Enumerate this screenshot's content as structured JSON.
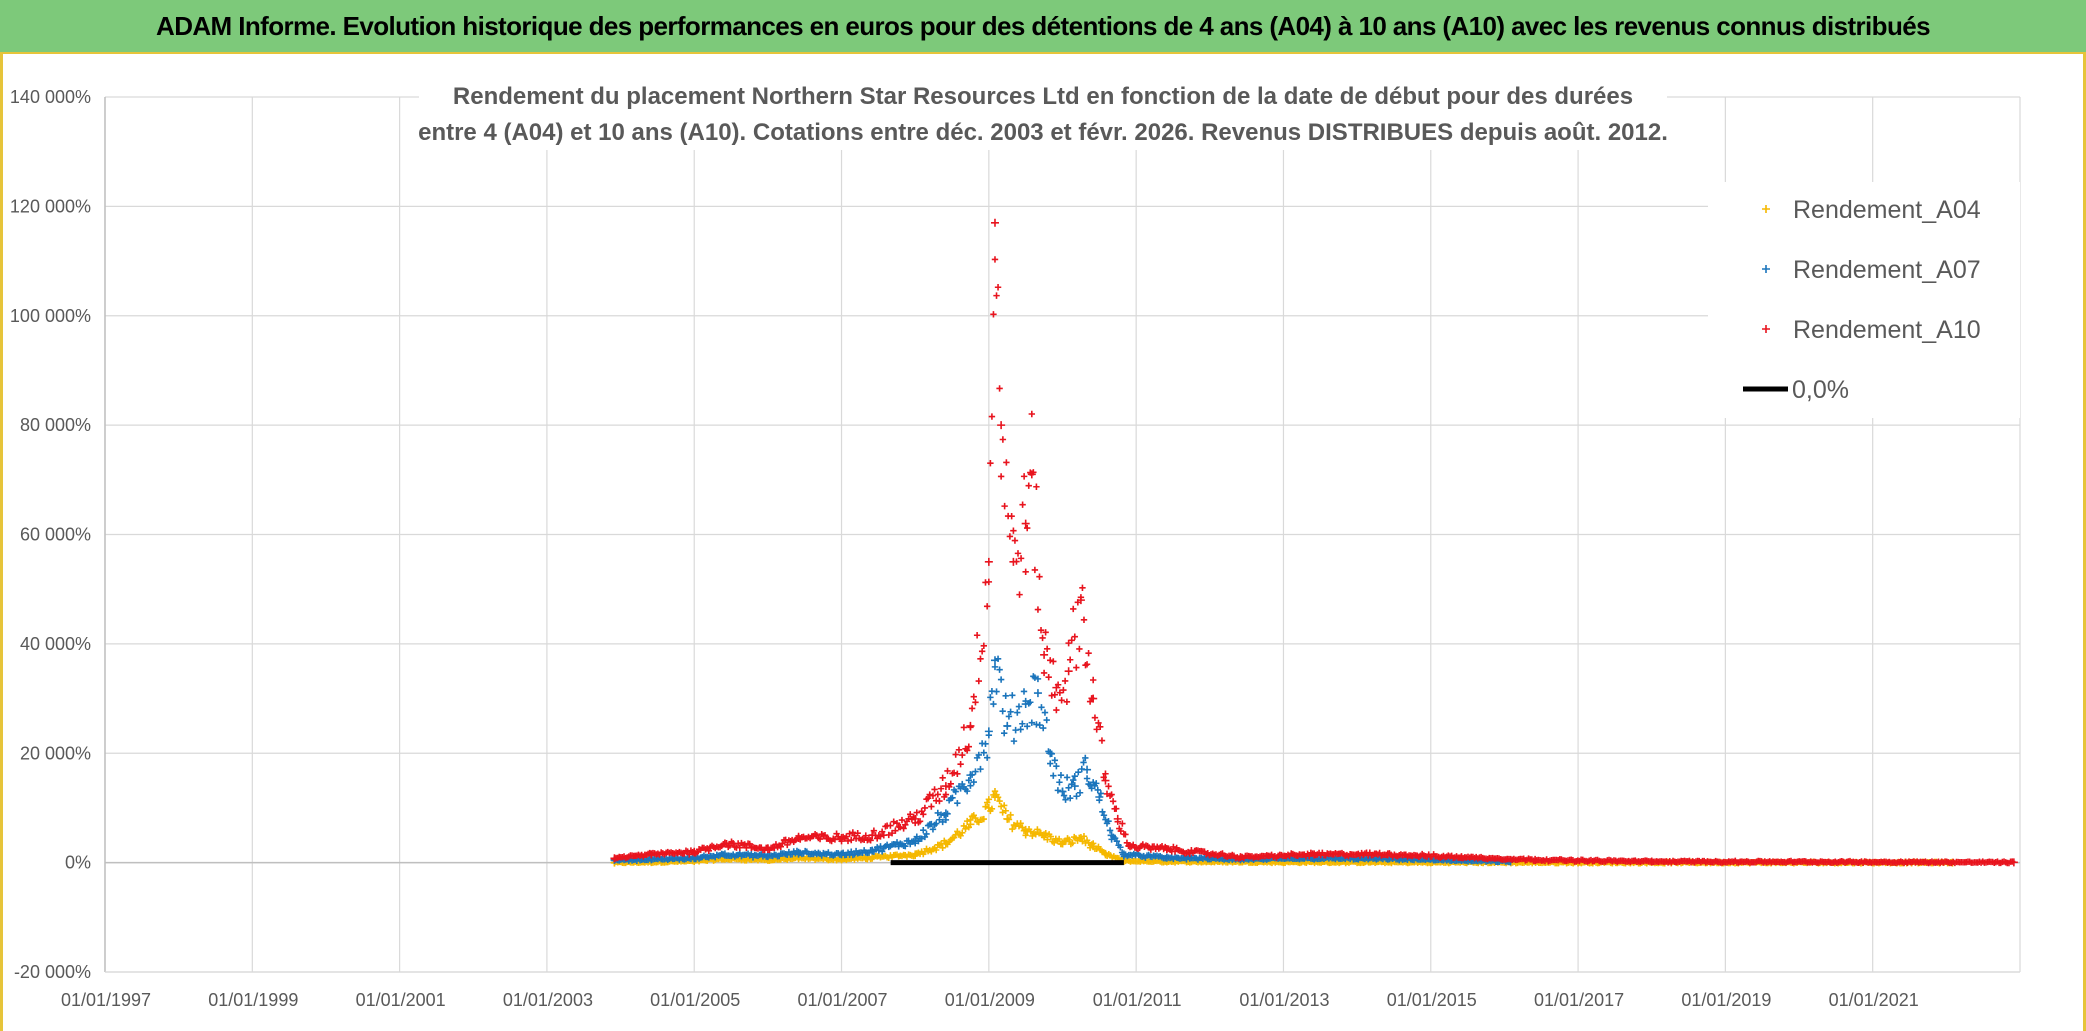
{
  "banner": {
    "title": "ADAM Informe. Evolution historique des performances en euros pour des détentions de 4 ans (A04) à 10 ans (A10) avec les revenus connus distribués"
  },
  "chart_data": {
    "type": "scatter",
    "title_lines": [
      "Rendement du placement Northern Star Resources Ltd en fonction de la date de début pour des durées",
      "entre 4 (A04) et 10 ans (A10). Cotations entre déc. 2003 et févr. 2026. Revenus DISTRIBUES depuis août. 2012."
    ],
    "xlabel": "",
    "ylabel": "",
    "x_range": [
      "1997-01-01",
      "2023-01-01"
    ],
    "ylim": [
      -20000,
      140000
    ],
    "y_ticks": [
      -20000,
      0,
      20000,
      40000,
      60000,
      80000,
      100000,
      120000,
      140000
    ],
    "y_tick_labels": [
      "-20 000%",
      "0%",
      "20 000%",
      "40 000%",
      "60 000%",
      "80 000%",
      "100 000%",
      "120 000%",
      "140 000%"
    ],
    "x_tick_labels": [
      "01/01/1997",
      "01/01/1999",
      "01/01/2001",
      "01/01/2003",
      "01/01/2005",
      "01/01/2007",
      "01/01/2009",
      "01/01/2011",
      "01/01/2013",
      "01/01/2015",
      "01/01/2017",
      "01/01/2019",
      "01/01/2021"
    ],
    "grid": true,
    "legend_position": "top-right",
    "series": [
      {
        "name": "Rendement_A04",
        "color": "#f5b800",
        "marker": "plus",
        "x_range": [
          "2003-12-01",
          "2022-02-01"
        ],
        "points": [
          [
            "2003-12-01",
            0
          ],
          [
            "2004-06-01",
            100
          ],
          [
            "2005-01-01",
            300
          ],
          [
            "2005-06-01",
            700
          ],
          [
            "2006-01-01",
            500
          ],
          [
            "2006-06-01",
            800
          ],
          [
            "2007-01-01",
            600
          ],
          [
            "2007-06-01",
            900
          ],
          [
            "2008-01-01",
            1500
          ],
          [
            "2008-06-01",
            3500
          ],
          [
            "2008-10-01",
            7000
          ],
          [
            "2009-01-01",
            10000
          ],
          [
            "2009-02-01",
            12000
          ],
          [
            "2009-04-01",
            8000
          ],
          [
            "2009-07-01",
            6000
          ],
          [
            "2009-10-01",
            5000
          ],
          [
            "2010-01-01",
            3500
          ],
          [
            "2010-04-01",
            4500
          ],
          [
            "2010-06-01",
            3000
          ],
          [
            "2010-08-01",
            1500
          ],
          [
            "2010-11-01",
            300
          ],
          [
            "2011-06-01",
            200
          ],
          [
            "2013-01-01",
            100
          ],
          [
            "2015-01-01",
            50
          ],
          [
            "2017-01-01",
            20
          ],
          [
            "2022-02-01",
            10
          ]
        ]
      },
      {
        "name": "Rendement_A07",
        "color": "#1b75bc",
        "marker": "plus",
        "x_range": [
          "2003-12-01",
          "2016-02-01"
        ],
        "points": [
          [
            "2003-12-01",
            500
          ],
          [
            "2004-06-01",
            600
          ],
          [
            "2005-01-01",
            800
          ],
          [
            "2005-06-01",
            1500
          ],
          [
            "2006-01-01",
            1200
          ],
          [
            "2006-06-01",
            1800
          ],
          [
            "2007-01-01",
            1500
          ],
          [
            "2007-06-01",
            2200
          ],
          [
            "2008-01-01",
            4000
          ],
          [
            "2008-06-01",
            9000
          ],
          [
            "2008-10-01",
            16000
          ],
          [
            "2009-01-01",
            24000
          ],
          [
            "2009-02-01",
            37000
          ],
          [
            "2009-04-01",
            25000
          ],
          [
            "2009-07-01",
            29000
          ],
          [
            "2009-09-01",
            31000
          ],
          [
            "2009-11-01",
            20000
          ],
          [
            "2010-01-01",
            13000
          ],
          [
            "2010-03-01",
            14000
          ],
          [
            "2010-05-01",
            17000
          ],
          [
            "2010-07-01",
            12000
          ],
          [
            "2010-09-01",
            5000
          ],
          [
            "2010-11-01",
            1500
          ],
          [
            "2011-06-01",
            900
          ],
          [
            "2012-06-01",
            600
          ],
          [
            "2013-06-01",
            800
          ],
          [
            "2014-06-01",
            700
          ],
          [
            "2016-02-01",
            200
          ]
        ]
      },
      {
        "name": "Rendement_A10",
        "color": "#e8141e",
        "marker": "plus",
        "x_range": [
          "2003-12-01",
          "2022-12-01"
        ],
        "points": [
          [
            "2003-12-01",
            800
          ],
          [
            "2004-06-01",
            1500
          ],
          [
            "2005-01-01",
            2000
          ],
          [
            "2005-06-01",
            3500
          ],
          [
            "2006-01-01",
            2500
          ],
          [
            "2006-06-01",
            4500
          ],
          [
            "2007-01-01",
            4500
          ],
          [
            "2007-06-01",
            5000
          ],
          [
            "2008-01-01",
            8000
          ],
          [
            "2008-06-01",
            14000
          ],
          [
            "2008-10-01",
            25000
          ],
          [
            "2009-01-01",
            55000
          ],
          [
            "2009-02-01",
            117000
          ],
          [
            "2009-03-01",
            80000
          ],
          [
            "2009-05-01",
            55000
          ],
          [
            "2009-07-01",
            62000
          ],
          [
            "2009-08-01",
            71000
          ],
          [
            "2009-10-01",
            38000
          ],
          [
            "2009-12-01",
            32000
          ],
          [
            "2010-02-01",
            35000
          ],
          [
            "2010-04-01",
            48000
          ],
          [
            "2010-06-01",
            30000
          ],
          [
            "2010-08-01",
            15000
          ],
          [
            "2010-10-01",
            8000
          ],
          [
            "2010-12-01",
            3000
          ],
          [
            "2011-06-01",
            2500
          ],
          [
            "2012-06-01",
            1000
          ],
          [
            "2013-06-01",
            1500
          ],
          [
            "2014-06-01",
            1500
          ],
          [
            "2015-06-01",
            1000
          ],
          [
            "2016-06-01",
            500
          ],
          [
            "2018-01-01",
            200
          ],
          [
            "2022-12-01",
            50
          ]
        ]
      },
      {
        "name": "0,0%",
        "color": "#000000",
        "marker": "line",
        "points": [
          [
            "2007-09-01",
            0
          ],
          [
            "2010-11-01",
            0
          ]
        ]
      }
    ]
  }
}
